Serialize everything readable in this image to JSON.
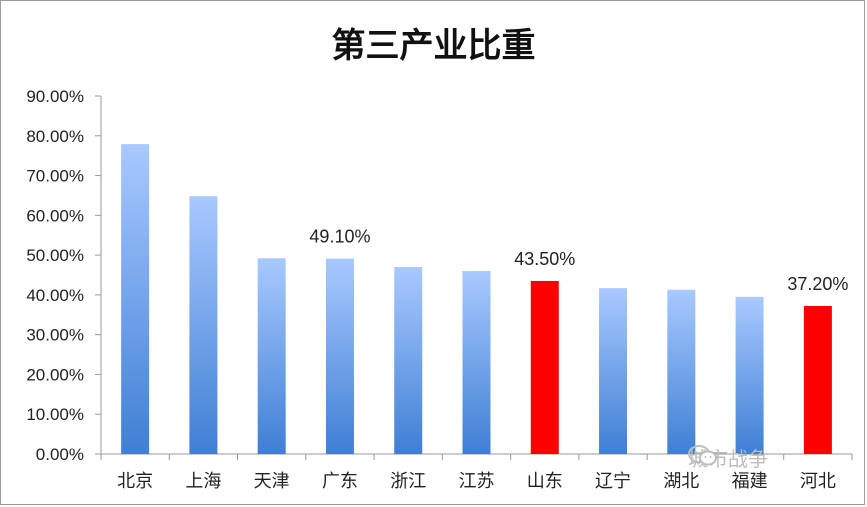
{
  "chart_data": {
    "type": "bar",
    "title": "第三产业比重",
    "categories": [
      "北京",
      "上海",
      "天津",
      "广东",
      "浙江",
      "江苏",
      "山东",
      "辽宁",
      "湖北",
      "福建",
      "河北"
    ],
    "values": [
      77.9,
      64.8,
      49.2,
      49.1,
      47.0,
      46.0,
      43.5,
      41.7,
      41.3,
      39.5,
      37.2
    ],
    "ylim": [
      0,
      90
    ],
    "ytick_labels": [
      "0.00%",
      "10.00%",
      "20.00%",
      "30.00%",
      "40.00%",
      "50.00%",
      "60.00%",
      "70.00%",
      "80.00%",
      "90.00%"
    ],
    "data_labels": [
      {
        "category": "广东",
        "text": "49.10%"
      },
      {
        "category": "山东",
        "text": "43.50%"
      },
      {
        "category": "河北",
        "text": "37.20%"
      }
    ],
    "highlighted_categories": [
      "山东",
      "河北"
    ],
    "colors": {
      "bar_top": "#a9c9ff",
      "bar_bottom": "#3f7fd4",
      "highlight": "#ff0000"
    },
    "grid": false,
    "legend": "none"
  },
  "watermark": {
    "text": "城市战争",
    "icon": "wechat-icon"
  }
}
